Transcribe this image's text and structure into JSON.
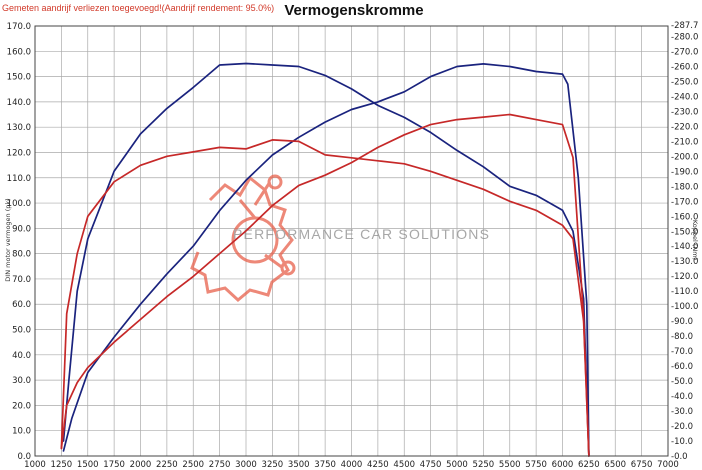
{
  "header": {
    "note": "Gemeten aandrijf verliezen toegevoegd!(Aandrijf rendement: 95.0%)"
  },
  "watermark": {
    "text": "PERFORMANCE CAR SOLUTIONS",
    "icon": "gear-icon",
    "color": "#e8614c"
  },
  "chart_data": {
    "type": "line",
    "title": "Vermogenskromme",
    "ylabel": "DIN motor vermogen (pk)",
    "y2label": "Koppel (Nm)",
    "xlim": [
      1000,
      7000
    ],
    "ylim": [
      0,
      170
    ],
    "y2lim": [
      0,
      287
    ],
    "grid": true,
    "x_ticks": [
      1000,
      1250,
      1500,
      1750,
      2000,
      2250,
      2500,
      2750,
      3000,
      3250,
      3500,
      3750,
      4000,
      4250,
      4500,
      4750,
      5000,
      5250,
      5500,
      5750,
      6000,
      6250,
      6500,
      6750,
      7000
    ],
    "y_ticks": [
      "0.0",
      "10.0",
      "20.0",
      "30.0",
      "40.0",
      "50.0",
      "60.0",
      "70.0",
      "80.0",
      "90.0",
      "100.0",
      "110.0",
      "120.0",
      "130.0",
      "140.0",
      "150.0",
      "160.0",
      "170.0"
    ],
    "y2_ticks": [
      "0.0",
      "10.0",
      "20.0",
      "30.0",
      "40.0",
      "50.0",
      "60.0",
      "70.0",
      "80.0",
      "90.0",
      "100.0",
      "110.0",
      "120.0",
      "130.0",
      "140.0",
      "150.0",
      "160.0",
      "170.0",
      "180.0",
      "190.0",
      "200.0",
      "210.0",
      "220.0",
      "230.0",
      "240.0",
      "250.0",
      "260.0",
      "270.0",
      "280.0",
      "287.7"
    ],
    "series": [
      {
        "color": "#1a237e",
        "axis": "left",
        "x": [
          1270,
          1350,
          1500,
          1750,
          2000,
          2250,
          2500,
          2750,
          3000,
          3250,
          3500,
          3750,
          4000,
          4250,
          4500,
          4750,
          5000,
          5250,
          5500,
          5750,
          6000,
          6050,
          6150,
          6230,
          6250
        ],
        "y": [
          2,
          15,
          33,
          47,
          60,
          72,
          83,
          97,
          109,
          119,
          126,
          132,
          137,
          140,
          144,
          150,
          154,
          155,
          154,
          152,
          151,
          147,
          110,
          60,
          0
        ]
      },
      {
        "color": "#1a237e",
        "axis": "right",
        "x": [
          1270,
          1320,
          1400,
          1500,
          1750,
          2000,
          2250,
          2500,
          2750,
          3000,
          3250,
          3500,
          3750,
          4000,
          4250,
          4500,
          4750,
          5000,
          5250,
          5500,
          5750,
          6000,
          6100,
          6200,
          6250
        ],
        "y": [
          10,
          50,
          110,
          145,
          190,
          215,
          232,
          246,
          261,
          262,
          261,
          260,
          254,
          245,
          234,
          226,
          216,
          204,
          193,
          180,
          174,
          164,
          150,
          105,
          0
        ]
      },
      {
        "color": "#c62828",
        "axis": "left",
        "x": [
          1250,
          1300,
          1400,
          1500,
          1750,
          2000,
          2250,
          2500,
          2750,
          3000,
          3250,
          3500,
          3750,
          4000,
          4250,
          4500,
          4750,
          5000,
          5250,
          5500,
          5750,
          6000,
          6100,
          6200,
          6250
        ],
        "y": [
          3,
          20,
          29,
          35,
          45,
          54,
          63,
          71,
          80,
          89,
          99,
          107,
          111,
          116,
          122,
          127,
          131,
          133,
          134,
          135,
          133,
          131,
          118,
          55,
          0
        ]
      },
      {
        "color": "#c62828",
        "axis": "right",
        "x": [
          1250,
          1300,
          1400,
          1500,
          1750,
          2000,
          2250,
          2500,
          2750,
          3000,
          3250,
          3500,
          3750,
          4000,
          4250,
          4500,
          4750,
          5000,
          5250,
          5500,
          5750,
          6000,
          6100,
          6200,
          6250
        ],
        "y": [
          5,
          95,
          135,
          160,
          183,
          194,
          200,
          203,
          206,
          205,
          211,
          210,
          201,
          199,
          197,
          195,
          190,
          184,
          178,
          170,
          164,
          154,
          145,
          90,
          0
        ]
      }
    ]
  }
}
